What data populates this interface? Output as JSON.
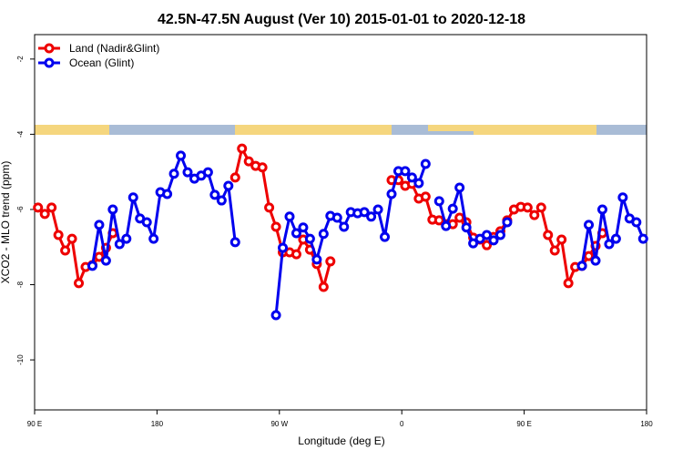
{
  "chart_data": {
    "type": "line",
    "title": "42.5N-47.5N August (Ver 10)   2015-01-01 to 2020-12-18",
    "x_label": "Longitude (deg E)",
    "y_label": "XCO2 - MLO trend (ppm)",
    "legend_position": "top-left",
    "xlim": [
      90,
      540
    ],
    "xticks": [
      {
        "value": 90,
        "label": "90 E"
      },
      180,
      {
        "value": 270,
        "label": "90 W"
      },
      {
        "value": 360,
        "label": "0"
      },
      {
        "value": 450,
        "label": "90 E"
      },
      {
        "value": 540,
        "label": "180"
      }
    ],
    "ylim": [
      -11.33,
      -1.35
    ],
    "yticks": [
      -2,
      -4,
      -6,
      -8,
      -10
    ],
    "x": [
      92.5,
      97.5,
      102.5,
      107.5,
      112.5,
      117.5,
      122.5,
      127.5,
      132.5,
      137.5,
      142.5,
      147.5,
      152.5,
      157.5,
      162.5,
      167.5,
      172.5,
      177.5,
      182.5,
      187.5,
      192.5,
      197.5,
      202.5,
      207.5,
      212.5,
      217.5,
      222.5,
      227.5,
      232.5,
      237.5,
      242.5,
      247.5,
      252.5,
      257.5,
      262.5,
      267.5,
      272.5,
      277.5,
      282.5,
      287.5,
      292.5,
      297.5,
      302.5,
      307.5,
      312.5,
      317.5,
      322.5,
      327.5,
      332.5,
      337.5,
      342.5,
      347.5,
      352.5,
      357.5,
      362.5,
      367.5,
      372.5,
      377.5,
      382.5,
      387.5,
      392.5,
      397.5,
      402.5,
      407.5,
      412.5,
      417.5,
      422.5,
      427.5,
      432.5,
      437.5,
      442.5,
      447.5,
      452.5,
      457.5,
      462.5,
      467.5,
      472.5,
      477.5,
      482.5,
      487.5,
      492.5,
      497.5,
      502.5,
      507.5,
      512.5,
      517.5,
      522.5,
      527.5,
      532.5,
      537.5
    ],
    "series": [
      {
        "name": "Land (Nadir&Glint)",
        "color": "#ee0000",
        "values": [
          -5.95,
          -6.12,
          -5.95,
          -6.68,
          -7.09,
          -6.78,
          -7.96,
          -7.53,
          -7.48,
          -7.26,
          -7.02,
          -6.63,
          null,
          null,
          null,
          null,
          null,
          null,
          null,
          null,
          null,
          null,
          null,
          null,
          null,
          null,
          null,
          null,
          null,
          -5.15,
          -4.38,
          -4.72,
          -4.84,
          -4.88,
          -5.95,
          -6.46,
          -7.14,
          -7.14,
          -7.19,
          -6.8,
          -7.07,
          -7.45,
          -8.06,
          -7.38,
          null,
          null,
          null,
          null,
          null,
          null,
          null,
          null,
          -5.22,
          -5.22,
          -5.37,
          -5.32,
          -5.71,
          -5.66,
          -6.27,
          -6.29,
          -6.39,
          -6.39,
          -6.22,
          -6.34,
          -6.75,
          -6.8,
          -6.95,
          -6.73,
          -6.58,
          -6.29,
          -6.0,
          -5.93,
          -5.95,
          -6.15,
          -5.95,
          -6.68,
          -7.09,
          -6.8,
          -7.96,
          -7.53,
          -7.5,
          -7.24,
          -6.97,
          -6.63,
          null,
          null,
          null,
          null,
          null,
          null
        ]
      },
      {
        "name": "Ocean (Glint)",
        "color": "#0000ee",
        "values": [
          null,
          null,
          null,
          null,
          null,
          null,
          null,
          null,
          -7.5,
          -6.41,
          -7.36,
          -6.0,
          -6.92,
          -6.78,
          -5.68,
          -6.24,
          -6.34,
          -6.78,
          -5.54,
          -5.59,
          -5.05,
          -4.57,
          -5.01,
          -5.18,
          -5.1,
          -5.01,
          -5.61,
          -5.76,
          -5.37,
          -6.87,
          null,
          null,
          null,
          null,
          null,
          -8.81,
          -7.02,
          -6.19,
          -6.63,
          -6.48,
          -6.78,
          -7.33,
          -6.65,
          -6.17,
          -6.22,
          -6.46,
          -6.07,
          -6.1,
          -6.07,
          -6.19,
          -6.0,
          -6.73,
          -5.59,
          -4.98,
          -4.98,
          -5.15,
          -5.3,
          -4.79,
          null,
          -5.78,
          -6.44,
          -5.98,
          -5.42,
          -6.48,
          -6.9,
          -6.78,
          -6.68,
          -6.82,
          -6.68,
          -6.34,
          null,
          null,
          null,
          null,
          null,
          null,
          null,
          null,
          null,
          null,
          -7.5,
          -6.41,
          -7.36,
          -6.0,
          -6.92,
          -6.78,
          -5.68,
          -6.24,
          -6.34,
          -6.78
        ]
      }
    ]
  }
}
